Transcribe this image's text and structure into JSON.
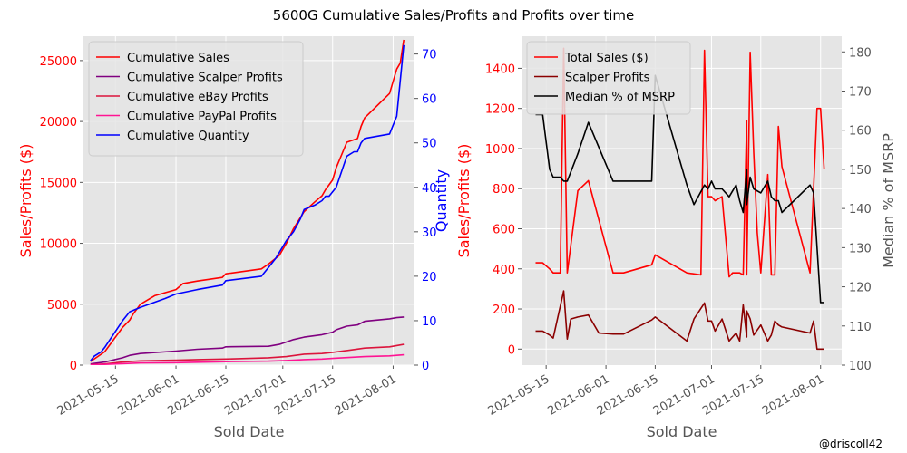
{
  "figure": {
    "title": "5600G Cumulative Sales/Profits and Profits over time",
    "credit": "@driscoll42"
  },
  "colors": {
    "background": "#e5e5e5",
    "grid": "#ffffff",
    "red": "#ff0000",
    "purple": "#800080",
    "crimson": "#dc143c",
    "pink": "#ff1493",
    "blue": "#0000ff",
    "darkred": "#8b0000",
    "black": "#000000",
    "gray_text": "#555555"
  },
  "chart_data": [
    {
      "type": "line",
      "title": "",
      "xlabel": "Sold Date",
      "ylabel": "Sales/Profits ($)",
      "y2label": "Quantity",
      "xlim": [
        "2021-05-06",
        "2021-08-07"
      ],
      "ylim": [
        0,
        27000
      ],
      "y2lim": [
        0,
        74
      ],
      "x_ticks": [
        "2021-05-15",
        "2021-06-01",
        "2021-06-15",
        "2021-07-01",
        "2021-07-15",
        "2021-08-01"
      ],
      "y_ticks": [
        0,
        5000,
        10000,
        15000,
        20000,
        25000
      ],
      "y2_ticks": [
        0,
        10,
        20,
        30,
        40,
        50,
        60,
        70
      ],
      "legend_position": "upper-left",
      "grid": true,
      "series": [
        {
          "name": "Cumulative Sales",
          "color": "#ff0000",
          "axis": "left",
          "x": [
            "2021-05-08",
            "2021-05-10",
            "2021-05-12",
            "2021-05-17",
            "2021-05-19",
            "2021-05-20",
            "2021-05-22",
            "2021-05-26",
            "2021-06-01",
            "2021-06-03",
            "2021-06-07",
            "2021-06-14",
            "2021-06-15",
            "2021-06-25",
            "2021-06-27",
            "2021-06-30",
            "2021-07-02",
            "2021-07-04",
            "2021-07-07",
            "2021-07-10",
            "2021-07-12",
            "2021-07-13",
            "2021-07-14",
            "2021-07-15",
            "2021-07-16",
            "2021-07-19",
            "2021-07-21",
            "2021-07-22",
            "2021-07-23",
            "2021-07-24",
            "2021-07-31",
            "2021-08-02",
            "2021-08-03",
            "2021-08-04"
          ],
          "y": [
            300,
            700,
            1100,
            3100,
            3700,
            4200,
            5000,
            5700,
            6200,
            6700,
            6900,
            7200,
            7500,
            7900,
            8300,
            9000,
            10000,
            11200,
            12600,
            13400,
            13900,
            14400,
            14800,
            15200,
            16200,
            18300,
            18500,
            18600,
            19600,
            20300,
            22300,
            24300,
            24800,
            26700
          ]
        },
        {
          "name": "Cumulative Scalper Profits",
          "color": "#800080",
          "axis": "left",
          "x": [
            "2021-05-08",
            "2021-05-12",
            "2021-05-17",
            "2021-05-19",
            "2021-05-22",
            "2021-06-01",
            "2021-06-07",
            "2021-06-14",
            "2021-06-15",
            "2021-06-27",
            "2021-06-30",
            "2021-07-02",
            "2021-07-04",
            "2021-07-07",
            "2021-07-12",
            "2021-07-15",
            "2021-07-16",
            "2021-07-19",
            "2021-07-22",
            "2021-07-24",
            "2021-07-31",
            "2021-08-02",
            "2021-08-04"
          ],
          "y": [
            100,
            250,
            600,
            800,
            950,
            1150,
            1300,
            1400,
            1500,
            1550,
            1700,
            1900,
            2100,
            2300,
            2500,
            2700,
            2900,
            3200,
            3300,
            3600,
            3800,
            3900,
            3950
          ]
        },
        {
          "name": "Cumulative eBay Profits",
          "color": "#dc143c",
          "axis": "left",
          "x": [
            "2021-05-08",
            "2021-05-12",
            "2021-05-17",
            "2021-05-22",
            "2021-06-01",
            "2021-06-07",
            "2021-06-15",
            "2021-06-27",
            "2021-07-02",
            "2021-07-07",
            "2021-07-12",
            "2021-07-15",
            "2021-07-19",
            "2021-07-24",
            "2021-07-31",
            "2021-08-04"
          ],
          "y": [
            40,
            100,
            250,
            350,
            400,
            450,
            500,
            600,
            700,
            900,
            950,
            1050,
            1200,
            1400,
            1500,
            1700
          ]
        },
        {
          "name": "Cumulative PayPal Profits",
          "color": "#ff1493",
          "axis": "left",
          "x": [
            "2021-05-08",
            "2021-05-12",
            "2021-05-17",
            "2021-05-22",
            "2021-06-01",
            "2021-06-07",
            "2021-06-15",
            "2021-06-27",
            "2021-07-02",
            "2021-07-07",
            "2021-07-12",
            "2021-07-15",
            "2021-07-19",
            "2021-07-24",
            "2021-07-31",
            "2021-08-04"
          ],
          "y": [
            20,
            60,
            120,
            180,
            200,
            240,
            280,
            330,
            380,
            450,
            500,
            550,
            620,
            700,
            760,
            850
          ]
        },
        {
          "name": "Cumulative Quantity",
          "color": "#0000ff",
          "axis": "right",
          "x": [
            "2021-05-08",
            "2021-05-09",
            "2021-05-11",
            "2021-05-12",
            "2021-05-17",
            "2021-05-18",
            "2021-05-19",
            "2021-05-22",
            "2021-05-29",
            "2021-06-01",
            "2021-06-07",
            "2021-06-14",
            "2021-06-15",
            "2021-06-25",
            "2021-06-27",
            "2021-06-29",
            "2021-07-02",
            "2021-07-04",
            "2021-07-06",
            "2021-07-07",
            "2021-07-10",
            "2021-07-12",
            "2021-07-13",
            "2021-07-14",
            "2021-07-16",
            "2021-07-19",
            "2021-07-21",
            "2021-07-22",
            "2021-07-23",
            "2021-07-24",
            "2021-07-31",
            "2021-08-02",
            "2021-08-04"
          ],
          "y": [
            1,
            2,
            3,
            4,
            10,
            11,
            12,
            13,
            15,
            16,
            17,
            18,
            19,
            20,
            22,
            24,
            28,
            30,
            33,
            35,
            36,
            37,
            38,
            38,
            40,
            47,
            48,
            48,
            50,
            51,
            52,
            56,
            72
          ]
        }
      ]
    },
    {
      "type": "line",
      "title": "",
      "xlabel": "Sold Date",
      "ylabel": "Sales/Profits ($)",
      "y2label": "Median % of MSRP",
      "xlim": [
        "2021-05-08",
        "2021-08-07"
      ],
      "ylim": [
        -80,
        1560
      ],
      "y2lim": [
        100,
        184
      ],
      "x_ticks": [
        "2021-05-15",
        "2021-06-01",
        "2021-06-15",
        "2021-07-01",
        "2021-07-15",
        "2021-08-01"
      ],
      "y_ticks": [
        0,
        200,
        400,
        600,
        800,
        1000,
        1200,
        1400
      ],
      "y2_ticks": [
        100,
        110,
        120,
        130,
        140,
        150,
        160,
        170,
        180
      ],
      "legend_position": "upper-left",
      "grid": true,
      "series": [
        {
          "name": "Total Sales ($)",
          "color": "#ff0000",
          "axis": "left",
          "x": [
            "2021-05-12",
            "2021-05-14",
            "2021-05-16",
            "2021-05-17",
            "2021-05-19",
            "2021-05-20",
            "2021-05-21",
            "2021-05-24",
            "2021-05-27",
            "2021-06-03",
            "2021-06-06",
            "2021-06-14",
            "2021-06-15",
            "2021-06-24",
            "2021-06-28",
            "2021-06-29",
            "2021-06-30",
            "2021-07-01",
            "2021-07-02",
            "2021-07-04",
            "2021-07-06",
            "2021-07-07",
            "2021-07-09",
            "2021-07-10",
            "2021-07-11",
            "2021-07-11",
            "2021-07-12",
            "2021-07-13",
            "2021-07-14",
            "2021-07-15",
            "2021-07-17",
            "2021-07-18",
            "2021-07-19",
            "2021-07-20",
            "2021-07-21",
            "2021-07-29",
            "2021-07-31",
            "2021-08-01",
            "2021-08-02"
          ],
          "y": [
            430,
            430,
            400,
            380,
            380,
            1500,
            380,
            790,
            840,
            380,
            380,
            420,
            470,
            380,
            370,
            1490,
            760,
            760,
            740,
            760,
            360,
            380,
            380,
            370,
            1140,
            370,
            1480,
            980,
            580,
            380,
            870,
            370,
            370,
            1110,
            910,
            380,
            1200,
            1200,
            900
          ]
        },
        {
          "name": "Scalper Profits",
          "color": "#8b0000",
          "axis": "left",
          "x": [
            "2021-05-12",
            "2021-05-14",
            "2021-05-16",
            "2021-05-17",
            "2021-05-20",
            "2021-05-21",
            "2021-05-22",
            "2021-05-24",
            "2021-05-27",
            "2021-05-30",
            "2021-06-03",
            "2021-06-06",
            "2021-06-14",
            "2021-06-15",
            "2021-06-24",
            "2021-06-26",
            "2021-06-29",
            "2021-06-30",
            "2021-07-01",
            "2021-07-02",
            "2021-07-04",
            "2021-07-06",
            "2021-07-08",
            "2021-07-09",
            "2021-07-10",
            "2021-07-11",
            "2021-07-11",
            "2021-07-12",
            "2021-07-13",
            "2021-07-15",
            "2021-07-17",
            "2021-07-18",
            "2021-07-19",
            "2021-07-20",
            "2021-07-21",
            "2021-07-29",
            "2021-07-30",
            "2021-07-31",
            "2021-08-02"
          ],
          "y": [
            90,
            90,
            70,
            55,
            290,
            50,
            150,
            160,
            170,
            80,
            75,
            75,
            145,
            160,
            40,
            150,
            230,
            140,
            140,
            90,
            150,
            40,
            80,
            40,
            220,
            60,
            190,
            150,
            70,
            120,
            40,
            70,
            140,
            120,
            110,
            80,
            140,
            0,
            0
          ]
        },
        {
          "name": "Median % of MSRP",
          "color": "#000000",
          "axis": "right",
          "x": [
            "2021-05-12",
            "2021-05-14",
            "2021-05-16",
            "2021-05-17",
            "2021-05-19",
            "2021-05-20",
            "2021-05-21",
            "2021-05-24",
            "2021-05-27",
            "2021-06-03",
            "2021-06-06",
            "2021-06-14",
            "2021-06-15",
            "2021-06-24",
            "2021-06-26",
            "2021-06-29",
            "2021-06-30",
            "2021-07-01",
            "2021-07-02",
            "2021-07-04",
            "2021-07-06",
            "2021-07-08",
            "2021-07-09",
            "2021-07-10",
            "2021-07-11",
            "2021-07-11",
            "2021-07-12",
            "2021-07-13",
            "2021-07-15",
            "2021-07-17",
            "2021-07-18",
            "2021-07-19",
            "2021-07-20",
            "2021-07-21",
            "2021-07-29",
            "2021-07-30",
            "2021-08-01",
            "2021-08-02"
          ],
          "y": [
            164,
            164,
            150,
            148,
            148,
            147,
            147,
            154,
            162,
            147,
            147,
            147,
            174,
            146,
            141,
            146,
            145,
            147,
            145,
            145,
            143,
            146,
            142,
            139,
            150,
            141,
            148,
            145,
            144,
            147,
            143,
            142,
            142,
            139,
            146,
            144,
            116,
            116
          ]
        }
      ]
    }
  ]
}
